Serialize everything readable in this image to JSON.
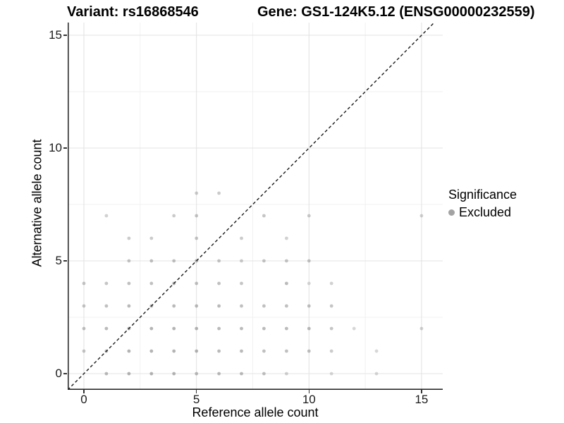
{
  "header": {
    "variant_title": "Variant: rs16868546",
    "gene_title": "Gene: GS1-124K5.12 (ENSG00000232559)"
  },
  "legend": {
    "title": "Significance",
    "items": [
      {
        "label": "Excluded",
        "color": "#a3a3a3"
      }
    ]
  },
  "colors": {
    "point": "#8c8c8c",
    "grid_major": "#e3e3e3",
    "grid_minor": "#f0f0f0",
    "axis_line": "#2b2b2b",
    "identity_line": "#1a1a1a",
    "background": "#ffffff"
  },
  "chart_data": {
    "type": "scatter",
    "title": "",
    "xlabel": "Reference allele count",
    "ylabel": "Alternative allele count",
    "xlim": [
      -0.72,
      15.94
    ],
    "ylim": [
      -0.72,
      15.56
    ],
    "xticks": [
      0,
      5,
      10,
      15
    ],
    "yticks": [
      0,
      5,
      10,
      15
    ],
    "xtick_labels": [
      "0",
      "5",
      "10",
      "15"
    ],
    "ytick_labels": [
      "0",
      "5",
      "10",
      "15"
    ],
    "x_minor_gridlines": [
      2.5,
      7.5,
      12.5
    ],
    "y_minor_gridlines": [
      2.5,
      7.5,
      12.5
    ],
    "grid": true,
    "legend_position": "right",
    "identity_line": {
      "slope": 1,
      "intercept": 0,
      "style": "dashed"
    },
    "series": [
      {
        "name": "Excluded",
        "points": [
          [
            1,
            0,
            0.6
          ],
          [
            2,
            0,
            0.65
          ],
          [
            3,
            0,
            0.65
          ],
          [
            4,
            0,
            0.65
          ],
          [
            5,
            0,
            0.6
          ],
          [
            6,
            0,
            0.6
          ],
          [
            7,
            0,
            0.6
          ],
          [
            8,
            0,
            0.55
          ],
          [
            9,
            0,
            0.4
          ],
          [
            11,
            0,
            0.35
          ],
          [
            13,
            0,
            0.35
          ],
          [
            0,
            1,
            0.5
          ],
          [
            1,
            1,
            0.6
          ],
          [
            2,
            1,
            0.65
          ],
          [
            3,
            1,
            0.65
          ],
          [
            4,
            1,
            0.65
          ],
          [
            5,
            1,
            0.65
          ],
          [
            6,
            1,
            0.6
          ],
          [
            7,
            1,
            0.6
          ],
          [
            8,
            1,
            0.55
          ],
          [
            9,
            1,
            0.55
          ],
          [
            10,
            1,
            0.55
          ],
          [
            11,
            1,
            0.45
          ],
          [
            13,
            1,
            0.35
          ],
          [
            0,
            2,
            0.55
          ],
          [
            1,
            2,
            0.6
          ],
          [
            2,
            2,
            0.65
          ],
          [
            3,
            2,
            0.65
          ],
          [
            4,
            2,
            0.65
          ],
          [
            5,
            2,
            0.65
          ],
          [
            6,
            2,
            0.6
          ],
          [
            7,
            2,
            0.6
          ],
          [
            8,
            2,
            0.6
          ],
          [
            9,
            2,
            0.6
          ],
          [
            10,
            2,
            0.6
          ],
          [
            11,
            2,
            0.5
          ],
          [
            12,
            2,
            0.35
          ],
          [
            15,
            2,
            0.4
          ],
          [
            0,
            3,
            0.5
          ],
          [
            1,
            3,
            0.55
          ],
          [
            2,
            3,
            0.6
          ],
          [
            3,
            3,
            0.65
          ],
          [
            4,
            3,
            0.6
          ],
          [
            5,
            3,
            0.6
          ],
          [
            6,
            3,
            0.6
          ],
          [
            7,
            3,
            0.55
          ],
          [
            8,
            3,
            0.55
          ],
          [
            9,
            3,
            0.55
          ],
          [
            10,
            3,
            0.55
          ],
          [
            11,
            3,
            0.5
          ],
          [
            0,
            4,
            0.5
          ],
          [
            1,
            4,
            0.5
          ],
          [
            2,
            4,
            0.55
          ],
          [
            3,
            4,
            0.55
          ],
          [
            4,
            4,
            0.65
          ],
          [
            5,
            4,
            0.55
          ],
          [
            6,
            4,
            0.55
          ],
          [
            7,
            4,
            0.5
          ],
          [
            9,
            4,
            0.6
          ],
          [
            10,
            4,
            0.35
          ],
          [
            11,
            4,
            0.4
          ],
          [
            2,
            5,
            0.5
          ],
          [
            3,
            5,
            0.55
          ],
          [
            4,
            5,
            0.55
          ],
          [
            5,
            5,
            0.65
          ],
          [
            6,
            5,
            0.5
          ],
          [
            7,
            5,
            0.45
          ],
          [
            8,
            5,
            0.5
          ],
          [
            9,
            5,
            0.5
          ],
          [
            10,
            5,
            0.5
          ],
          [
            2,
            6,
            0.45
          ],
          [
            3,
            6,
            0.45
          ],
          [
            5,
            6,
            0.5
          ],
          [
            7,
            6,
            0.45
          ],
          [
            9,
            6,
            0.4
          ],
          [
            1,
            7,
            0.4
          ],
          [
            4,
            7,
            0.45
          ],
          [
            5,
            7,
            0.5
          ],
          [
            8,
            7,
            0.5
          ],
          [
            10,
            7,
            0.45
          ],
          [
            15,
            7,
            0.4
          ],
          [
            5,
            8,
            0.45
          ],
          [
            6,
            8,
            0.45
          ]
        ]
      }
    ]
  }
}
